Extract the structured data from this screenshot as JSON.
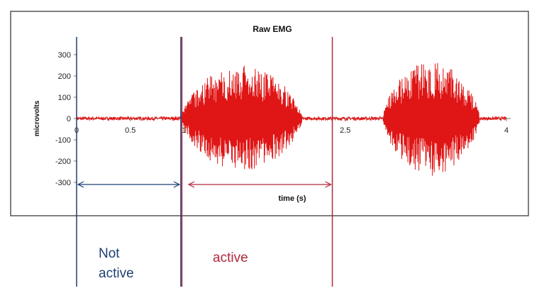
{
  "chart_data": {
    "type": "line",
    "title": "Raw EMG",
    "xlabel": "time (s)",
    "ylabel": "microvolts",
    "xlim": [
      0,
      4
    ],
    "ylim": [
      -300,
      300
    ],
    "x_ticks": [
      "0",
      "0.5",
      "1",
      "1.5",
      "2",
      "2.5",
      "3",
      "3.5",
      "4"
    ],
    "y_ticks": [
      "300",
      "200",
      "100",
      "0",
      "-100",
      "-200",
      "-300"
    ],
    "grid": false,
    "series": [
      {
        "color": "#e01515",
        "bursts": [
          {
            "start": 0.97,
            "end": 2.1,
            "peak_uV": 250,
            "trough_uV": -250
          },
          {
            "start": 2.85,
            "end": 3.75,
            "peak_uV": 280,
            "trough_uV": -260
          }
        ],
        "baseline_noise_uV": 8
      }
    ],
    "markers": [
      {
        "x": 0.0,
        "color": "#1f3f73"
      },
      {
        "x": 0.97,
        "color": "#1f3f73"
      },
      {
        "x": 0.98,
        "color": "#b0283c"
      },
      {
        "x": 2.38,
        "color": "#b0283c"
      }
    ],
    "spans": [
      {
        "from": 0.0,
        "to": 0.97,
        "color": "#1f3f73"
      },
      {
        "from": 1.03,
        "to": 2.38,
        "color": "#b0283c"
      }
    ]
  },
  "annotations": {
    "not_active_line1": "Not",
    "not_active_line2": "active",
    "active": "active"
  },
  "colors": {
    "not_active": "#1f3f73",
    "active": "#b0283c",
    "signal": "#e01515"
  }
}
